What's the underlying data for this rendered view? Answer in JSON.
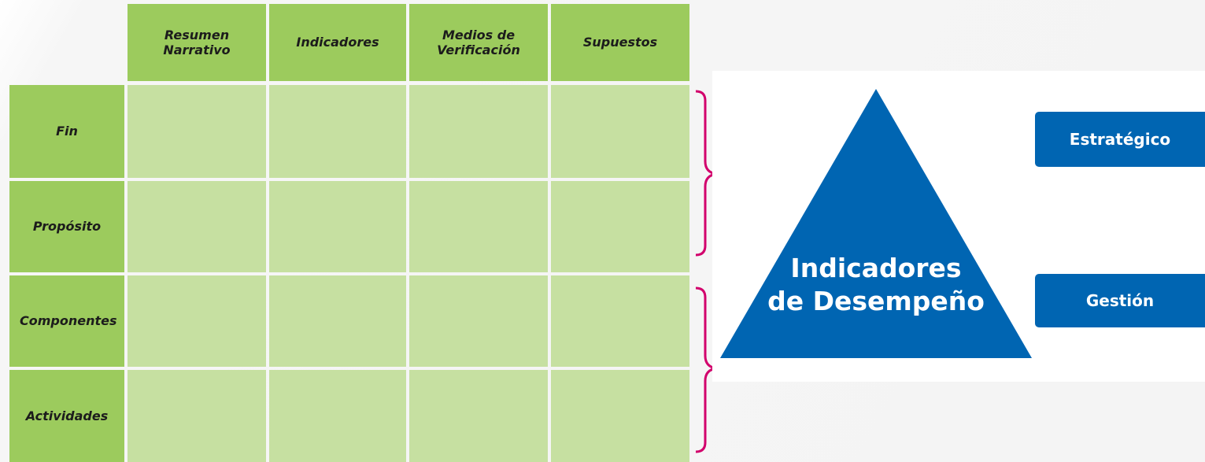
{
  "table": {
    "columns": [
      "Resumen Narrativo",
      "Indicadores",
      "Medios de Verificación",
      "Supuestos"
    ],
    "rows": [
      "Fin",
      "Propósito",
      "Componentes",
      "Actividades"
    ]
  },
  "diagram": {
    "title_lines": [
      "Indicadores",
      "de Desempeño"
    ],
    "levels": [
      "Estratégico",
      "Gestión"
    ]
  }
}
